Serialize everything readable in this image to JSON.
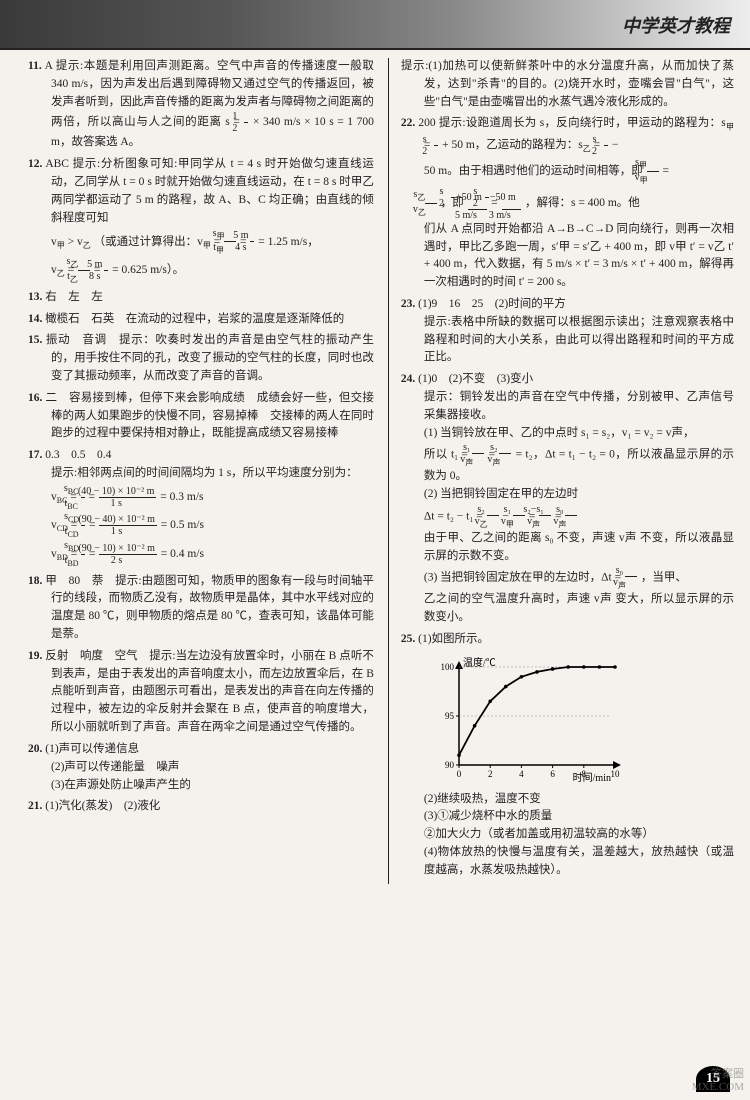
{
  "header": {
    "title": "中学英才教程"
  },
  "left": {
    "q11": {
      "num": "11.",
      "ans": "A",
      "hint": "提示:本题是利用回声测距离。空气中声音的传播速度一般取 340 m/s，因为声发出后遇到障碍物又通过空气的传播返回，被发声者听到，因此声音传播的距离为发声者与障碍物之间距离的两倍，所以高山与人之间的距离 s =",
      "hint_tail": "× 340 m/s × 10 s = 1 700 m，故答案选 A。"
    },
    "q12": {
      "num": "12.",
      "ans": "ABC",
      "hint": "提示:分析图象可知:甲同学从 t = 4 s 时开始做匀速直线运动，乙同学从 t = 0 s 时就开始做匀速直线运动，在 t = 8 s 时甲乙两同学都运动了 5 m 的路程，故 A、B、C 均正确；由直线的倾斜程度可知",
      "line2a": "v",
      "line2b": " > v",
      "line2c": "（或通过计算得出：v",
      "line2d": " =",
      "line2e": " = 1.25 m/s，",
      "line3a": "v",
      "line3b": " =",
      "line3c": " = 0.625 m/s）。"
    },
    "q13": {
      "num": "13.",
      "text": "右　左　左"
    },
    "q14": {
      "num": "14.",
      "text": "橄榄石　石英　在流动的过程中，岩浆的温度是逐渐降低的"
    },
    "q15": {
      "num": "15.",
      "text": "振动　音调　提示：吹奏时发出的声音是由空气柱的振动产生的，用手按住不同的孔，改变了振动的空气柱的长度，同时也改变了其振动频率，从而改变了声音的音调。"
    },
    "q16": {
      "num": "16.",
      "text": "二　容易接到棒，但停下来会影响成绩　成绩会好一些，但交接棒的两人如果跑步的快慢不同，容易掉棒　交接棒的两人在同时跑步的过程中要保持相对静止，既能提高成绩又容易接棒"
    },
    "q17": {
      "num": "17.",
      "vals": "0.3　0.5　0.4",
      "hint": "提示:相邻两点间的时间间隔均为 1 s，所以平均速度分别为：",
      "eq1a": "v",
      "eq1b": " =",
      "eq1c": " = 0.3 m/s",
      "eq2a": "v",
      "eq2b": " =",
      "eq2c": " = 0.5 m/s",
      "eq3a": "v",
      "eq3b": " =",
      "eq3c": " = 0.4 m/s"
    },
    "q18": {
      "num": "18.",
      "text": "甲　80　萘　提示:由题图可知，物质甲的图象有一段与时间轴平行的线段，而物质乙没有，故物质甲是晶体，其中水平线对应的温度是 80 ℃，则甲物质的熔点是 80 ℃，查表可知，该晶体可能是萘。"
    },
    "q19": {
      "num": "19.",
      "text": "反射　响度　空气　提示:当左边没有放置伞时，小丽在 B 点听不到表声，是由于表发出的声音响度太小，而左边放置伞后，在 B 点能听到声音，由题图示可看出，是表发出的声音在向左传播的过程中，被左边的伞反射并会聚在 B 点，使声音的响度增大，所以小丽就听到了声音。声音在两伞之间是通过空气传播的。"
    },
    "q20": {
      "num": "20.",
      "p1": "(1)声可以传递信息",
      "p2": "(2)声可以传递能量　噪声",
      "p3": "(3)在声源处防止噪声产生的"
    },
    "q21": {
      "num": "21.",
      "text": "(1)汽化(蒸发)　(2)液化"
    }
  },
  "right": {
    "q21hint": "提示:(1)加热可以使新鲜茶叶中的水分温度升高，从而加快了蒸发，达到\"杀青\"的目的。(2)烧开水时，壶嘴会冒\"白气\"，这些\"白气\"是由壶嘴冒出的水蒸气遇冷液化形成的。",
    "q22": {
      "num": "22.",
      "ans": "200",
      "hint1": "提示:设跑道周长为 s，反向绕行时，甲运动的路程为：s",
      "hint1b": " =",
      "hint1c": " + 50 m，乙运动的路程为：s",
      "hint1d": " =",
      "hint1e": " −",
      "hint2a": "50 m。由于相遇时他们的运动时间相等，即",
      "hint2b": " =",
      "hint3a": "，即",
      "hint3b": " =",
      "hint3c": "，解得：s = 400 m。他",
      "hint4": "们从 A 点同时开始都沿 A→B→C→D 同向绕行，则再一次相遇时，甲比乙多跑一周，s′甲 = s′乙 + 400 m，即 v甲 t′ = v乙 t′ + 400 m，代入数据，有 5 m/s × t′ = 3 m/s × t′ + 400 m，解得再一次相遇时的时间 t′ = 200 s。"
    },
    "q23": {
      "num": "23.",
      "p1": "(1)9　16　25　(2)时间的平方",
      "hint": "提示:表格中所缺的数据可以根据图示读出；注意观察表格中路程和时间的大小关系，由此可以得出路程和时间的平方成正比。"
    },
    "q24": {
      "num": "24.",
      "p1": "(1)0　(2)不变　(3)变小",
      "hint": "提示：铜铃发出的声音在空气中传播，分别被甲、乙声信号采集器接收。",
      "s1a": "(1) 当铜铃放在甲、乙的中点时 s₁ = s₂，v₁ = v₂ = v声，",
      "s1b": "所以 t₁ =",
      "s1c": " =",
      "s1d": " = t₂，Δt = t₁ − t₂ = 0，所以液晶显示屏的示数为 0。",
      "s2a": "(2) 当把铜铃固定在甲的左边时",
      "s2b": "Δt = t₂ − t₁ =",
      "s2c": " −",
      "s2d": " =",
      "s2e": " =",
      "s2f": "由于甲、乙之间的距离 s₀ 不变，声速 v声 不变，所以液晶显示屏的示数不变。",
      "s3a": "(3) 当把铜铃固定放在甲的左边时，Δt =",
      "s3b": "，当甲、",
      "s3c": "乙之间的空气温度升高时，声速 v声 变大，所以显示屏的示数变小。"
    },
    "q25": {
      "num": "25.",
      "p1": "(1)如图所示。",
      "chart": {
        "ylabel": "温度/℃",
        "xlabel": "时间/min",
        "xvals": [
          0,
          2,
          4,
          6,
          8,
          10
        ],
        "yvals": [
          90,
          95,
          100
        ],
        "curve": [
          [
            0,
            91
          ],
          [
            1,
            94
          ],
          [
            2,
            96.5
          ],
          [
            3,
            98
          ],
          [
            4,
            99
          ],
          [
            5,
            99.5
          ],
          [
            6,
            99.8
          ],
          [
            7,
            100
          ],
          [
            8,
            100
          ],
          [
            9,
            100
          ],
          [
            10,
            100
          ]
        ],
        "line_color": "#000",
        "axis_color": "#000",
        "bg": "#f5f2ed"
      },
      "p2": "(2)继续吸热，温度不变",
      "p3": "(3)①减少烧杯中水的质量",
      "p4": "②加大火力（或者加盖或用初温较高的水等）",
      "p5": "(4)物体放热的快慢与温度有关，温差越大，放热越快（或温度越高，水蒸发吸热越快）。"
    }
  },
  "footer": {
    "page": "15"
  },
  "watermark": {
    "l1": "答案圈",
    "l2": "MXE.COM"
  }
}
